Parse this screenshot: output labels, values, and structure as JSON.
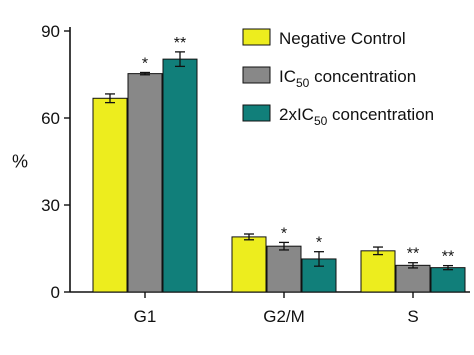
{
  "chart_data": {
    "type": "bar",
    "title": "",
    "xlabel": "",
    "ylabel": "%",
    "ylim": [
      0,
      90
    ],
    "yticks": [
      0,
      30,
      60,
      90
    ],
    "grid": false,
    "legend_placement": "top-right",
    "categories": [
      "G1",
      "G2/M",
      "S"
    ],
    "series": [
      {
        "name": "Negative Control",
        "legend_text": "Negative Control",
        "color": "#eded1e",
        "values": [
          66.8,
          19.0,
          14.2
        ],
        "errors": [
          1.5,
          1.0,
          1.3
        ],
        "annotations": [
          "",
          "",
          ""
        ]
      },
      {
        "name": "IC50 concentration",
        "legend_prefix": "IC",
        "legend_sub": "50",
        "legend_suffix": " concentration",
        "color": "#888888",
        "values": [
          75.3,
          15.8,
          9.2
        ],
        "errors": [
          0.4,
          1.3,
          0.9
        ],
        "annotations": [
          "*",
          "*",
          "**"
        ]
      },
      {
        "name": "2xIC50 concentration",
        "legend_prefix": "2xIC",
        "legend_sub": "50",
        "legend_suffix": " concentration",
        "color": "#117f7a",
        "values": [
          80.3,
          11.4,
          8.4
        ],
        "errors": [
          2.5,
          2.5,
          0.7
        ],
        "annotations": [
          "**",
          "*",
          "**"
        ]
      }
    ]
  }
}
